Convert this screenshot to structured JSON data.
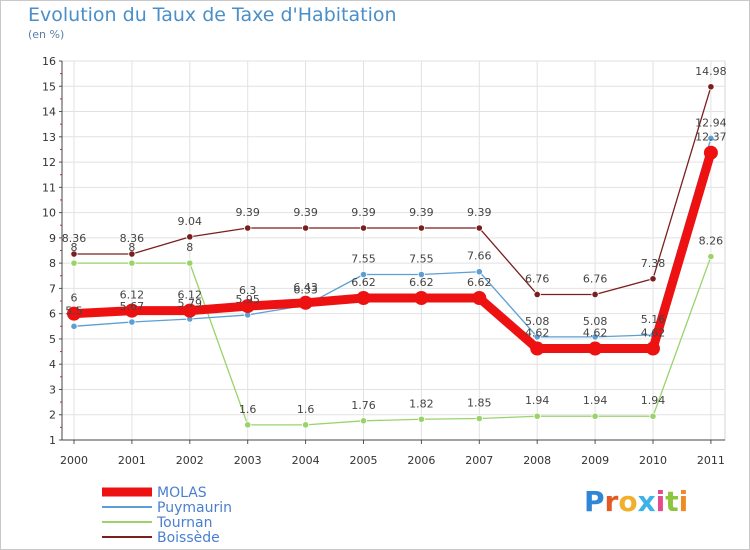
{
  "header": {
    "title": "Evolution du Taux de Taxe d'Habitation",
    "unit": "(en %)"
  },
  "brand": {
    "letters": [
      "P",
      "r",
      "o",
      "x",
      "i",
      "t",
      "i"
    ],
    "colors": [
      "#2e86d6",
      "#e45a22",
      "#f0b02a",
      "#3db2e6",
      "#e64a8c",
      "#8cc63e",
      "#f08a24"
    ]
  },
  "chart_data": {
    "type": "line",
    "x": [
      "2000",
      "2001",
      "2002",
      "2003",
      "2004",
      "2005",
      "2006",
      "2007",
      "2008",
      "2009",
      "2010",
      "2011"
    ],
    "ylim": [
      1,
      16
    ],
    "yticks": [
      1,
      2,
      3,
      4,
      5,
      6,
      7,
      8,
      9,
      10,
      11,
      12,
      13,
      14,
      15,
      16
    ],
    "grid": true,
    "legend_position": "bottom-left",
    "series": [
      {
        "name": "Boissède",
        "color": "#7a1f1f",
        "marker": "circle",
        "values": [
          8.36,
          8.36,
          9.04,
          9.39,
          9.39,
          9.39,
          9.39,
          9.39,
          6.76,
          6.76,
          7.38,
          14.98
        ],
        "labels": [
          "8.36",
          "8.36",
          "9.04",
          "9.39",
          "9.39",
          "9.39",
          "9.39",
          "9.39",
          "6.76",
          "6.76",
          "7.38",
          "14.98"
        ]
      },
      {
        "name": "Tournan",
        "color": "#99d36a",
        "marker": "circle",
        "values": [
          8,
          8,
          8,
          1.6,
          1.6,
          1.76,
          1.82,
          1.85,
          1.94,
          1.94,
          1.94,
          8.26
        ],
        "labels": [
          "8",
          "8",
          "8",
          "1.6",
          "1.6",
          "1.76",
          "1.82",
          "1.85",
          "1.94",
          "1.94",
          "1.94",
          "8.26"
        ]
      },
      {
        "name": "Puymaurin",
        "color": "#5b9fd4",
        "marker": "circle",
        "values": [
          5.5,
          5.67,
          5.79,
          5.95,
          6.33,
          7.55,
          7.55,
          7.66,
          5.08,
          5.08,
          5.16,
          12.94
        ],
        "labels": [
          "5.5",
          "5.67",
          "5.79",
          "5.95",
          "6.33",
          "7.55",
          "7.55",
          "7.66",
          "5.08",
          "5.08",
          "5.16",
          "12.94"
        ]
      },
      {
        "name": "MOLAS",
        "color": "#ee1111",
        "marker": "circle",
        "values": [
          6,
          6.12,
          6.12,
          6.3,
          6.43,
          6.62,
          6.62,
          6.62,
          4.62,
          4.62,
          4.62,
          12.37
        ],
        "labels": [
          "6",
          "6.12",
          "6.12",
          "6.3",
          "6.43",
          "6.62",
          "6.62",
          "6.62",
          "4.62",
          "4.62",
          "4.62",
          "12.37"
        ]
      }
    ],
    "legend": [
      {
        "name": "MOLAS",
        "color": "#ee1111"
      },
      {
        "name": "Puymaurin",
        "color": "#5b9fd4"
      },
      {
        "name": "Tournan",
        "color": "#99d36a"
      },
      {
        "name": "Boissède",
        "color": "#7a1f1f"
      }
    ]
  }
}
